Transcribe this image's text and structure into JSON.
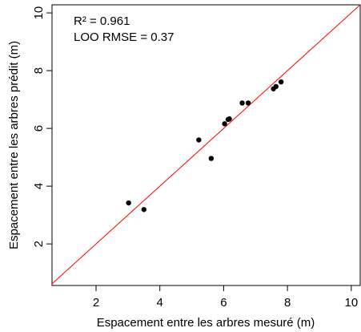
{
  "chart_data": {
    "type": "scatter",
    "title": "",
    "xlabel": "Espacement entre les arbres mesuré (m)",
    "ylabel": "Espacement entre les arbres prédit (m)",
    "xlim": [
      0.62,
      10.28
    ],
    "ylim": [
      0.56,
      10.28
    ],
    "x_ticks": [
      2,
      4,
      6,
      8,
      10
    ],
    "y_ticks": [
      2,
      4,
      6,
      8,
      10
    ],
    "grid": false,
    "annotations": [
      "R² = 0.961",
      "LOO RMSE = 0.37"
    ],
    "reference_line": {
      "type": "identity",
      "slope": 1,
      "intercept": 0,
      "color": "#ff0000"
    },
    "points": [
      {
        "x": 3.02,
        "y": 3.42
      },
      {
        "x": 3.5,
        "y": 3.19
      },
      {
        "x": 5.22,
        "y": 5.6
      },
      {
        "x": 5.61,
        "y": 4.96
      },
      {
        "x": 6.03,
        "y": 6.16
      },
      {
        "x": 6.14,
        "y": 6.31
      },
      {
        "x": 6.18,
        "y": 6.33
      },
      {
        "x": 6.58,
        "y": 6.88
      },
      {
        "x": 6.77,
        "y": 6.88
      },
      {
        "x": 7.56,
        "y": 7.37
      },
      {
        "x": 7.64,
        "y": 7.45
      },
      {
        "x": 7.8,
        "y": 7.61
      }
    ]
  }
}
